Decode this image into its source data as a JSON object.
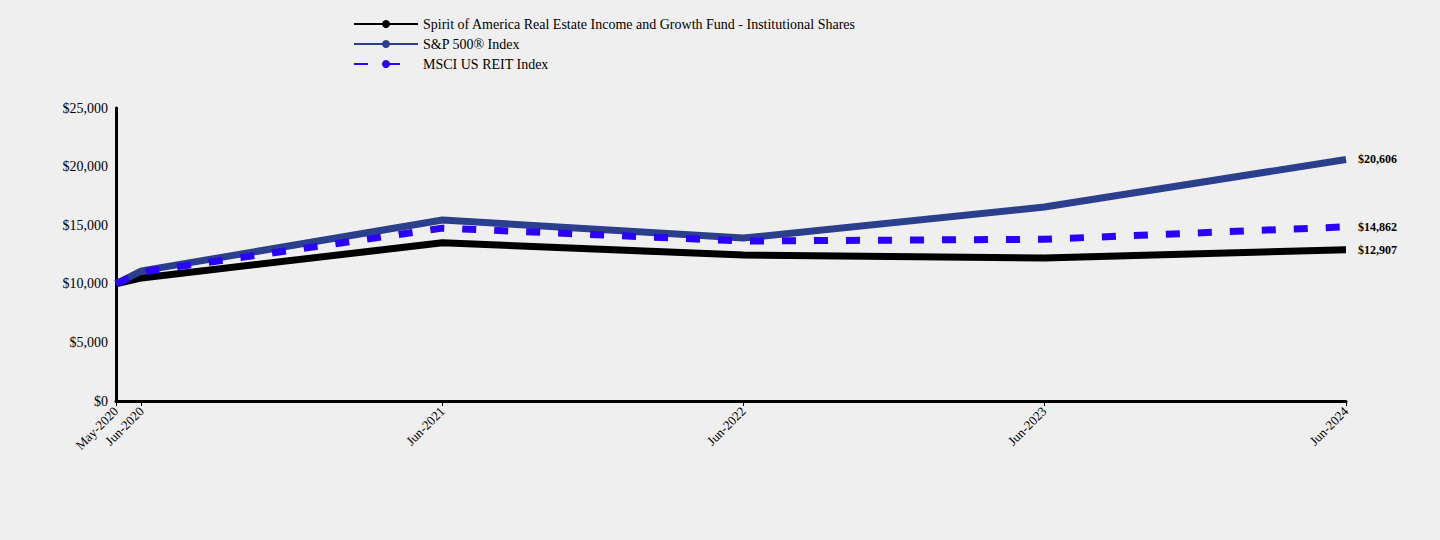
{
  "chart_data": {
    "type": "line",
    "x": [
      "May-2020",
      "Jun-2020",
      "Jun-2021",
      "Jun-2022",
      "Jun-2023",
      "Jun-2024"
    ],
    "series": [
      {
        "name": "Spirit of America Real Estate Income and Growth Fund - Institutional Shares",
        "color": "#000000",
        "line_style": "solid",
        "values": [
          10000,
          10500,
          13500,
          12450,
          12200,
          12907
        ],
        "value_labels": [
          null,
          null,
          null,
          null,
          null,
          "$12,907"
        ]
      },
      {
        "name": "S&P 500® Index",
        "color": "#2b3f8c",
        "line_style": "solid",
        "values": [
          10000,
          11100,
          15450,
          13900,
          16550,
          20606
        ],
        "value_labels": [
          null,
          null,
          null,
          null,
          null,
          "$20,606"
        ]
      },
      {
        "name": "MSCI US REIT Index",
        "color": "#2a00ff",
        "line_style": "dashed",
        "values": [
          10000,
          11000,
          14750,
          13650,
          13800,
          14862
        ],
        "value_labels": [
          null,
          null,
          null,
          null,
          null,
          "$14,862"
        ]
      }
    ],
    "ylim": [
      0,
      25000
    ],
    "yticks": [
      {
        "value": 0,
        "label": "$0"
      },
      {
        "value": 5000,
        "label": "$5,000"
      },
      {
        "value": 10000,
        "label": "$10,000"
      },
      {
        "value": 15000,
        "label": "$15,000"
      },
      {
        "value": 20000,
        "label": "$20,000"
      },
      {
        "value": 25000,
        "label": "$25,000"
      }
    ],
    "grid": false,
    "legend": "top"
  }
}
